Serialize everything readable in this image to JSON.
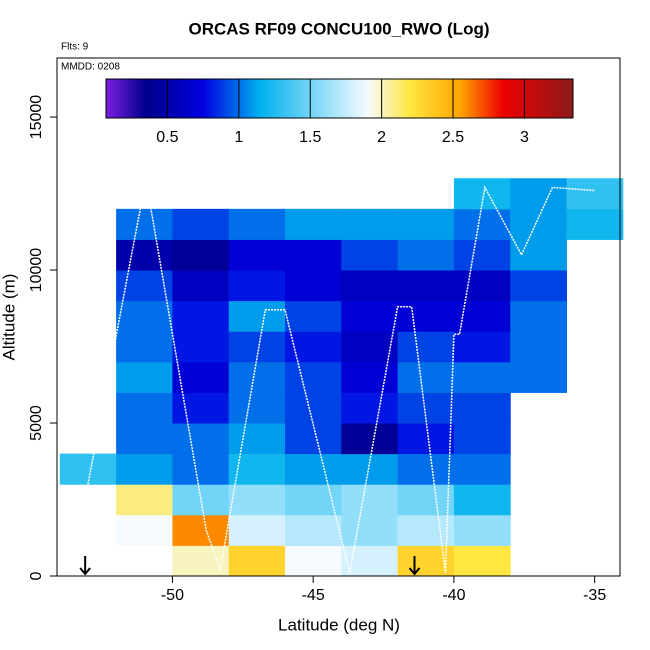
{
  "chart_data": {
    "type": "heatmap",
    "title": "ORCAS RF09 CONCU100_RWO (Log)",
    "annotations": [
      "Flts: 9",
      "MMDD: 0208"
    ],
    "x_label": "Latitude (deg N)",
    "y_label": "Altitude (m)",
    "xlim": [
      -54.1,
      -34.1
    ],
    "ylim": [
      0,
      16930
    ],
    "xticks": [
      -50,
      -45,
      -40,
      -35
    ],
    "yticks": [
      0,
      5000,
      10000,
      15000
    ],
    "x_edges": [
      -54,
      -52,
      -50,
      -48,
      -46,
      -44,
      -42,
      -40,
      -38,
      -36,
      -34
    ],
    "y_edges": [
      0,
      1000,
      2000,
      3000,
      4000,
      5000,
      6000,
      7000,
      8000,
      9000,
      10000,
      11000,
      12000,
      13000
    ],
    "values": [
      [
        null,
        null,
        2.0,
        2.3,
        1.9,
        1.8,
        2.3,
        2.2,
        null,
        null
      ],
      [
        null,
        1.9,
        2.6,
        1.8,
        1.7,
        1.6,
        1.7,
        1.6,
        null,
        null
      ],
      [
        null,
        2.1,
        1.5,
        1.6,
        1.5,
        1.6,
        1.5,
        1.2,
        null,
        null
      ],
      [
        1.3,
        1.1,
        1.0,
        1.2,
        1.1,
        1.1,
        1.0,
        1.0,
        null,
        null
      ],
      [
        null,
        1.0,
        1.0,
        1.1,
        0.9,
        0.4,
        0.8,
        0.9,
        null,
        null
      ],
      [
        null,
        1.0,
        0.8,
        1.0,
        0.9,
        0.8,
        0.9,
        0.9,
        null,
        null
      ],
      [
        null,
        1.1,
        0.7,
        1.0,
        0.9,
        0.7,
        1.0,
        1.0,
        1.0,
        null
      ],
      [
        null,
        1.0,
        0.8,
        0.9,
        0.8,
        0.6,
        0.9,
        0.8,
        1.0,
        null
      ],
      [
        null,
        1.0,
        0.8,
        1.1,
        0.9,
        0.7,
        0.7,
        0.7,
        1.0,
        null
      ],
      [
        null,
        0.9,
        0.6,
        0.8,
        0.7,
        0.6,
        0.6,
        0.6,
        0.9,
        null
      ],
      [
        null,
        0.5,
        0.4,
        0.7,
        0.7,
        0.9,
        1.0,
        0.9,
        1.1,
        null
      ],
      [
        null,
        1.0,
        0.9,
        1.0,
        1.1,
        1.1,
        1.1,
        1.0,
        1.1,
        1.2
      ],
      [
        null,
        null,
        null,
        null,
        null,
        null,
        null,
        1.2,
        1.1,
        1.3
      ]
    ],
    "colorscale": [
      {
        "value": 0.07,
        "color": "#7b1fe0"
      },
      {
        "value": 0.35,
        "color": "#00008b"
      },
      {
        "value": 0.75,
        "color": "#0000e0"
      },
      {
        "value": 1.15,
        "color": "#00b2ee"
      },
      {
        "value": 1.9,
        "color": "#f5fbff"
      },
      {
        "value": 2.2,
        "color": "#ffe640"
      },
      {
        "value": 2.55,
        "color": "#ffa500"
      },
      {
        "value": 2.85,
        "color": "#ee0000"
      },
      {
        "value": 3.34,
        "color": "#8b1a1a"
      }
    ],
    "colorbar_lim": [
      0.07,
      3.34
    ],
    "colorbar_ticks": [
      0.5,
      1.0,
      1.5,
      2.0,
      2.5,
      3.0
    ],
    "track": {
      "color": "#ffffff",
      "x": [
        -53,
        -51.1,
        -50.8,
        -48.8,
        -48.3,
        -46.7,
        -46,
        -43.7,
        -42,
        -41.5,
        -40.3,
        -40,
        -39.8,
        -38.9,
        -37.6,
        -36.5,
        -35
      ],
      "y": [
        3000,
        12200,
        12200,
        1500,
        200,
        8700,
        8700,
        100,
        8800,
        8800,
        100,
        7900,
        7900,
        12700,
        10500,
        12700,
        12600
      ]
    },
    "arrows_x": [
      -53.1,
      -41.4
    ]
  }
}
